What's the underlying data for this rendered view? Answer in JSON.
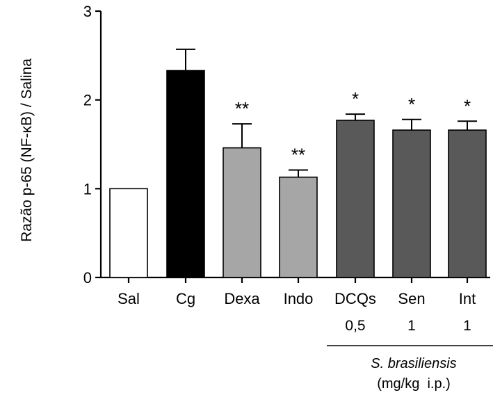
{
  "chart_data": {
    "type": "bar",
    "ylabel": "Razão p-65 (NF-κB) / Salina",
    "ylim": [
      0,
      3
    ],
    "yticks": [
      0,
      1,
      2,
      3
    ],
    "categories": [
      "Sal",
      "Cg",
      "Dexa",
      "Indo",
      "DCQs",
      "Sen",
      "Int"
    ],
    "values": [
      1.0,
      2.33,
      1.46,
      1.13,
      1.77,
      1.66,
      1.66
    ],
    "errors": [
      0,
      0.24,
      0.27,
      0.08,
      0.07,
      0.12,
      0.1
    ],
    "significance": [
      "",
      "",
      "**",
      "**",
      "*",
      "*",
      "*"
    ],
    "colors": [
      "#ffffff",
      "#000000",
      "#a6a6a6",
      "#a6a6a6",
      "#595959",
      "#595959",
      "#595959"
    ],
    "doses": [
      "",
      "",
      "",
      "",
      "0,5",
      "1",
      "1"
    ],
    "group_label": "S. brasiliensis",
    "dose_unit": "(mg/kg  i.p.)"
  }
}
